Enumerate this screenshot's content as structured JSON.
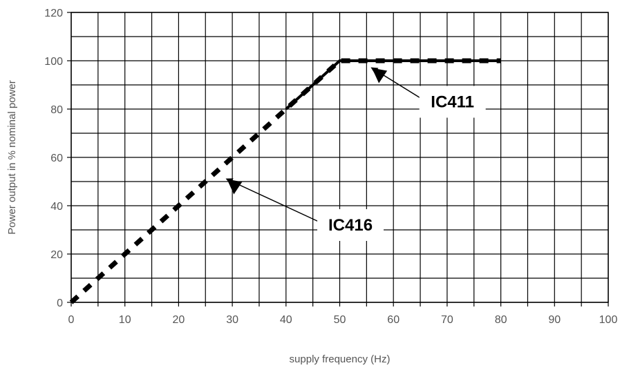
{
  "chart_data": {
    "type": "line",
    "title": "",
    "xlabel": "supply frequency (Hz)",
    "ylabel": "Power output in % nominal power",
    "xlim": [
      0,
      100
    ],
    "ylim": [
      0,
      120
    ],
    "xticks": [
      0,
      10,
      20,
      30,
      40,
      50,
      60,
      70,
      80,
      90,
      100
    ],
    "yticks": [
      0,
      20,
      40,
      60,
      80,
      100,
      120
    ],
    "grid": true,
    "x_minor_grid_step": 5,
    "series": [
      {
        "name": "IC416",
        "style": "dashed",
        "color": "#000000",
        "points": [
          [
            0,
            0
          ],
          [
            10,
            20
          ],
          [
            20,
            40
          ],
          [
            30,
            60
          ],
          [
            40,
            80
          ],
          [
            50,
            100
          ],
          [
            80,
            100
          ]
        ]
      },
      {
        "name": "IC411",
        "style": "solid",
        "color": "#000000",
        "points": [
          [
            40,
            80
          ],
          [
            50,
            100
          ],
          [
            80,
            100
          ]
        ]
      }
    ],
    "annotations": [
      {
        "label": "IC411",
        "points_to": [
          56,
          97
        ],
        "label_at": [
          71,
          83
        ]
      },
      {
        "label": "IC416",
        "points_to": [
          29,
          51
        ],
        "label_at": [
          52,
          32
        ]
      }
    ]
  }
}
